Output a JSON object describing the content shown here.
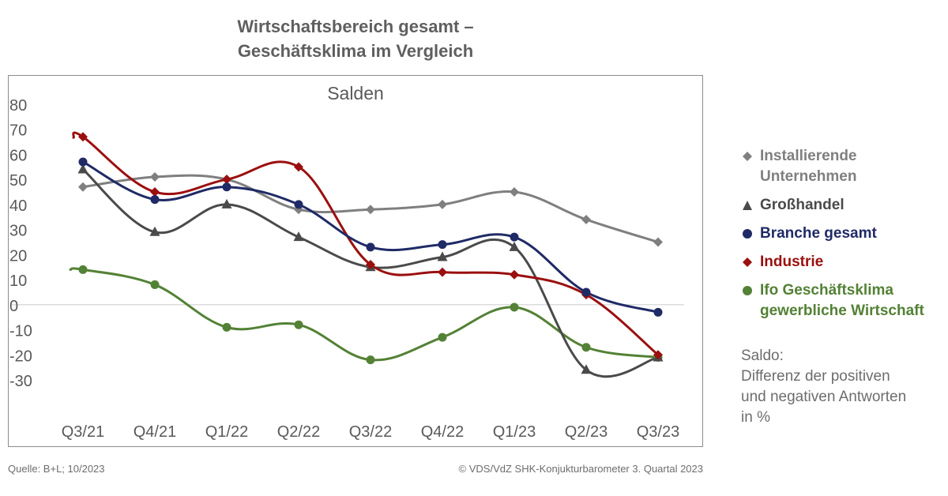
{
  "title_line1": "Wirtschaftsbereich gesamt –",
  "title_line2": "Geschäftsklima im Vergleich",
  "note": {
    "line1": "Saldo:",
    "line2": "Differenz der positiven",
    "line3": "und negativen Antworten",
    "line4": "in %"
  },
  "footer": {
    "source": "Quelle: B+L; 10/2023",
    "copyright": "© VDS/VdZ SHK-Konjukturbarometer 3. Quartal 2023"
  },
  "chart_data": {
    "type": "line",
    "subtitle": "Salden",
    "categories": [
      "Q3/21",
      "Q4/21",
      "Q1/22",
      "Q2/22",
      "Q3/22",
      "Q4/22",
      "Q1/23",
      "Q2/23",
      "Q3/23"
    ],
    "ylim": [
      -30,
      80
    ],
    "yticks": [
      "80",
      "70",
      "60",
      "50",
      "40",
      "30",
      "20",
      "10",
      "0",
      "-10",
      "-20",
      "-30"
    ],
    "grid": false,
    "zero_line": true,
    "legend_position": "right",
    "series": [
      {
        "name": "Installierende Unternehmen",
        "name_line1": "Installierende",
        "name_line2": "Unternehmen",
        "marker": "diamond",
        "color": "#7f7f7f",
        "values": [
          47,
          51,
          50,
          38,
          38,
          40,
          45,
          34,
          25
        ]
      },
      {
        "name": "Großhandel",
        "name_line1": "Großhandel",
        "name_line2": "",
        "marker": "triangle",
        "color": "#4a4a4a",
        "values": [
          54,
          29,
          40,
          27,
          15,
          19,
          23,
          -26,
          -21
        ]
      },
      {
        "name": "Branche gesamt",
        "name_line1": "Branche gesamt",
        "name_line2": "",
        "marker": "circle",
        "color": "#1f2a66",
        "values": [
          57,
          42,
          47,
          40,
          23,
          24,
          27,
          5,
          -3
        ]
      },
      {
        "name": "Industrie",
        "name_line1": "Industrie",
        "name_line2": "",
        "marker": "diamond",
        "color": "#9b0f0f",
        "values": [
          67,
          45,
          50,
          55,
          16,
          13,
          12,
          4,
          -20
        ]
      },
      {
        "name": "Ifo Geschäftsklima gewerbliche Wirtschaft",
        "name_line1": "Ifo Geschäftsklima",
        "name_line2": "gewerbliche Wirtschaft",
        "marker": "circle",
        "color": "#538135",
        "values": [
          14,
          8,
          -9,
          -8,
          -22,
          -13,
          -1,
          -17,
          -21
        ]
      }
    ]
  }
}
